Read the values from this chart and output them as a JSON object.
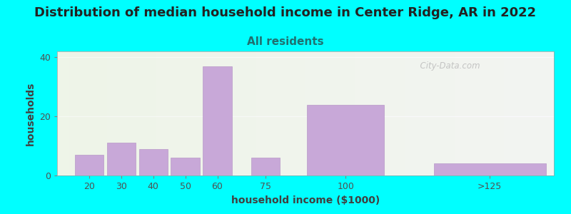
{
  "title": "Distribution of median household income in Center Ridge, AR in 2022",
  "subtitle": "All residents",
  "xlabel": "household income ($1000)",
  "ylabel": "households",
  "bar_labels": [
    "20",
    "30",
    "40",
    "50",
    "60",
    "75",
    "100",
    ">125"
  ],
  "bar_values": [
    7,
    11,
    9,
    6,
    37,
    6,
    24,
    4
  ],
  "bar_color": "#C8A8D8",
  "bar_edgecolor": "#B898C8",
  "ylim": [
    0,
    42
  ],
  "yticks": [
    0,
    20,
    40
  ],
  "background_outer": "#00FFFF",
  "background_plot": "#EEF5E8",
  "title_fontsize": 13,
  "subtitle_fontsize": 11,
  "subtitle_color": "#207070",
  "axis_label_fontsize": 10,
  "tick_fontsize": 9,
  "watermark_text": "  City-Data.com",
  "watermark_color": "#BBBBBB",
  "bar_centers": [
    20,
    30,
    40,
    50,
    60,
    75,
    100,
    145
  ],
  "bar_widths": [
    9,
    9,
    9,
    9,
    9,
    9,
    24,
    35
  ],
  "xlim": [
    10,
    165
  ],
  "xtick_positions": [
    20,
    30,
    40,
    50,
    60,
    75,
    100,
    145
  ],
  "title_color": "#222222"
}
